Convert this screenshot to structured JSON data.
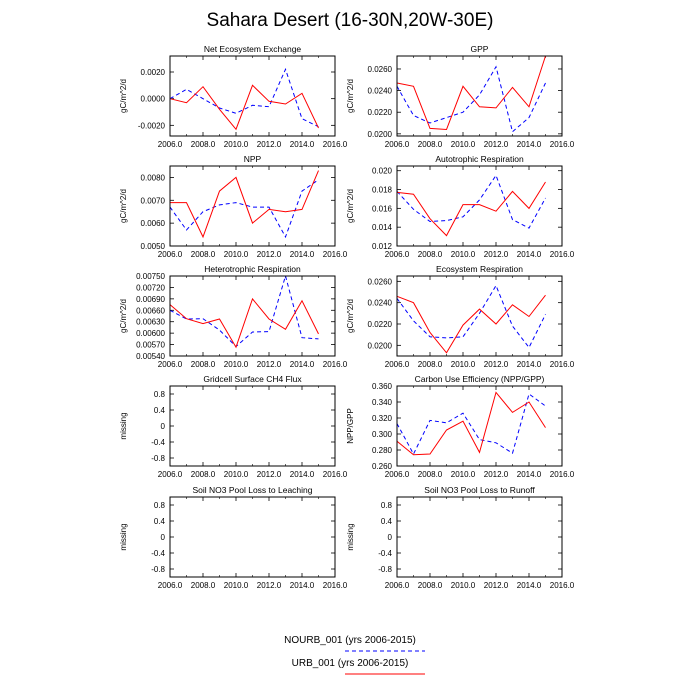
{
  "title": "Sahara Desert (16-30N,20W-30E)",
  "legend": {
    "items": [
      {
        "label": "NOURB_001 (yrs 2006-2015)",
        "color": "#0000ff",
        "dash": true
      },
      {
        "label": "URB_001 (yrs 2006-2015)",
        "color": "#ff0000",
        "dash": false
      }
    ]
  },
  "chart_data": [
    {
      "type": "line",
      "title": "Net Ecosystem Exchange",
      "ylabel": "gC/m^2/d",
      "x": [
        2006,
        2007,
        2008,
        2009,
        2010,
        2011,
        2012,
        2013,
        2014,
        2015
      ],
      "xlim": [
        2006,
        2016
      ],
      "xticks": [
        "2006.0",
        "2008.0",
        "2010.0",
        "2012.0",
        "2014.0",
        "2016.0"
      ],
      "ylim": [
        -0.0028,
        0.0032
      ],
      "yticks": [
        {
          "v": -0.002,
          "t": "-0.0020"
        },
        {
          "v": 0.0,
          "t": "0.0000"
        },
        {
          "v": 0.002,
          "t": "0.0020"
        }
      ],
      "series": [
        {
          "name": "NOURB_001",
          "color": "#0000ff",
          "dash": true,
          "values": [
            0.0,
            0.0007,
            0.0,
            -0.0007,
            -0.0011,
            -0.0005,
            -0.0006,
            0.0022,
            -0.0015,
            -0.0021
          ]
        },
        {
          "name": "URB_001",
          "color": "#ff0000",
          "dash": false,
          "values": [
            0.0,
            -0.0003,
            0.0009,
            -0.0008,
            -0.0023,
            0.001,
            -0.0002,
            -0.0004,
            0.0004,
            -0.0022
          ]
        }
      ]
    },
    {
      "type": "line",
      "title": "GPP",
      "ylabel": "gC/m^2/d",
      "x": [
        2006,
        2007,
        2008,
        2009,
        2010,
        2011,
        2012,
        2013,
        2014,
        2015
      ],
      "xlim": [
        2006,
        2016
      ],
      "xticks": [
        "2006.0",
        "2008.0",
        "2010.0",
        "2012.0",
        "2014.0",
        "2016.0"
      ],
      "ylim": [
        0.0198,
        0.0272
      ],
      "yticks": [
        {
          "v": 0.02,
          "t": "0.0200"
        },
        {
          "v": 0.022,
          "t": "0.0220"
        },
        {
          "v": 0.024,
          "t": "0.0240"
        },
        {
          "v": 0.026,
          "t": "0.0260"
        }
      ],
      "series": [
        {
          "name": "NOURB_001",
          "color": "#0000ff",
          "dash": true,
          "values": [
            0.0244,
            0.0217,
            0.021,
            0.0215,
            0.022,
            0.0236,
            0.0262,
            0.0202,
            0.0215,
            0.0247
          ]
        },
        {
          "name": "URB_001",
          "color": "#ff0000",
          "dash": false,
          "values": [
            0.0247,
            0.0244,
            0.0205,
            0.0204,
            0.0244,
            0.0225,
            0.0224,
            0.0243,
            0.0225,
            0.0272
          ]
        }
      ]
    },
    {
      "type": "line",
      "title": "NPP",
      "ylabel": "gC/m^2/d",
      "x": [
        2006,
        2007,
        2008,
        2009,
        2010,
        2011,
        2012,
        2013,
        2014,
        2015
      ],
      "xlim": [
        2006,
        2016
      ],
      "xticks": [
        "2006.0",
        "2008.0",
        "2010.0",
        "2012.0",
        "2014.0",
        "2016.0"
      ],
      "ylim": [
        0.005,
        0.0085
      ],
      "yticks": [
        {
          "v": 0.005,
          "t": "0.0050"
        },
        {
          "v": 0.006,
          "t": "0.0060"
        },
        {
          "v": 0.007,
          "t": "0.0070"
        },
        {
          "v": 0.008,
          "t": "0.0080"
        }
      ],
      "series": [
        {
          "name": "NOURB_001",
          "color": "#0000ff",
          "dash": true,
          "values": [
            0.0067,
            0.0057,
            0.0065,
            0.0068,
            0.0069,
            0.0067,
            0.0067,
            0.0054,
            0.0074,
            0.0079
          ]
        },
        {
          "name": "URB_001",
          "color": "#ff0000",
          "dash": false,
          "values": [
            0.0069,
            0.0069,
            0.0054,
            0.0074,
            0.008,
            0.006,
            0.0066,
            0.0065,
            0.0066,
            0.0083
          ]
        }
      ]
    },
    {
      "type": "line",
      "title": "Autotrophic Respiration",
      "ylabel": "gC/m^2/d",
      "x": [
        2006,
        2007,
        2008,
        2009,
        2010,
        2011,
        2012,
        2013,
        2014,
        2015
      ],
      "xlim": [
        2006,
        2016
      ],
      "xticks": [
        "2006.0",
        "2008.0",
        "2010.0",
        "2012.0",
        "2014.0",
        "2016.0"
      ],
      "ylim": [
        0.012,
        0.0205
      ],
      "yticks": [
        {
          "v": 0.012,
          "t": "0.012"
        },
        {
          "v": 0.014,
          "t": "0.014"
        },
        {
          "v": 0.016,
          "t": "0.016"
        },
        {
          "v": 0.018,
          "t": "0.018"
        },
        {
          "v": 0.02,
          "t": "0.020"
        }
      ],
      "series": [
        {
          "name": "NOURB_001",
          "color": "#0000ff",
          "dash": true,
          "values": [
            0.0178,
            0.0159,
            0.0146,
            0.0147,
            0.0151,
            0.0169,
            0.0195,
            0.0148,
            0.0139,
            0.0171
          ]
        },
        {
          "name": "URB_001",
          "color": "#ff0000",
          "dash": false,
          "values": [
            0.0177,
            0.0175,
            0.0149,
            0.0131,
            0.0164,
            0.0164,
            0.0157,
            0.0178,
            0.016,
            0.0188
          ]
        }
      ]
    },
    {
      "type": "line",
      "title": "Heterotrophic Respiration",
      "ylabel": "gC/m^2/d",
      "x": [
        2006,
        2007,
        2008,
        2009,
        2010,
        2011,
        2012,
        2013,
        2014,
        2015
      ],
      "xlim": [
        2006,
        2016
      ],
      "xticks": [
        "2006.0",
        "2008.0",
        "2010.0",
        "2012.0",
        "2014.0",
        "2016.0"
      ],
      "ylim": [
        0.0054,
        0.0075
      ],
      "yticks": [
        {
          "v": 0.0054,
          "t": "0.00540"
        },
        {
          "v": 0.0057,
          "t": "0.00570"
        },
        {
          "v": 0.006,
          "t": "0.00600"
        },
        {
          "v": 0.0063,
          "t": "0.00630"
        },
        {
          "v": 0.0066,
          "t": "0.00660"
        },
        {
          "v": 0.0069,
          "t": "0.00690"
        },
        {
          "v": 0.0072,
          "t": "0.00720"
        },
        {
          "v": 0.0075,
          "t": "0.00750"
        }
      ],
      "series": [
        {
          "name": "NOURB_001",
          "color": "#0000ff",
          "dash": true,
          "values": [
            0.0066,
            0.00637,
            0.00638,
            0.00608,
            0.00565,
            0.00603,
            0.00604,
            0.0075,
            0.00588,
            0.00585
          ]
        },
        {
          "name": "URB_001",
          "color": "#ff0000",
          "dash": false,
          "values": [
            0.00675,
            0.00638,
            0.00625,
            0.00637,
            0.00563,
            0.0069,
            0.00637,
            0.0061,
            0.00685,
            0.00598
          ]
        }
      ]
    },
    {
      "type": "line",
      "title": "Ecosystem Respiration",
      "ylabel": "gC/m^2/d",
      "x": [
        2006,
        2007,
        2008,
        2009,
        2010,
        2011,
        2012,
        2013,
        2014,
        2015
      ],
      "xlim": [
        2006,
        2016
      ],
      "xticks": [
        "2006.0",
        "2008.0",
        "2010.0",
        "2012.0",
        "2014.0",
        "2016.0"
      ],
      "ylim": [
        0.019,
        0.0265
      ],
      "yticks": [
        {
          "v": 0.02,
          "t": "0.0200"
        },
        {
          "v": 0.022,
          "t": "0.0220"
        },
        {
          "v": 0.024,
          "t": "0.0240"
        },
        {
          "v": 0.026,
          "t": "0.0260"
        }
      ],
      "series": [
        {
          "name": "NOURB_001",
          "color": "#0000ff",
          "dash": true,
          "values": [
            0.0244,
            0.0223,
            0.0208,
            0.0207,
            0.0208,
            0.023,
            0.0256,
            0.0218,
            0.0198,
            0.0229
          ]
        },
        {
          "name": "URB_001",
          "color": "#ff0000",
          "dash": false,
          "values": [
            0.0246,
            0.024,
            0.0212,
            0.0193,
            0.0219,
            0.0234,
            0.022,
            0.0238,
            0.0227,
            0.0247
          ]
        }
      ]
    },
    {
      "type": "line",
      "title": "Gridcell Surface CH4 Flux",
      "ylabel": "missing",
      "x": [],
      "xlim": [
        2006,
        2016
      ],
      "xticks": [
        "2006.0",
        "2008.0",
        "2010.0",
        "2012.0",
        "2014.0",
        "2016.0"
      ],
      "ylim": [
        -1.0,
        1.0
      ],
      "yticks": [
        {
          "v": -0.8,
          "t": "-0.8"
        },
        {
          "v": -0.4,
          "t": "-0.4"
        },
        {
          "v": 0.0,
          "t": "0"
        },
        {
          "v": 0.4,
          "t": "0.4"
        },
        {
          "v": 0.8,
          "t": "0.8"
        }
      ],
      "series": []
    },
    {
      "type": "line",
      "title": "Carbon Use Efficiency (NPP/GPP)",
      "ylabel": "NPP/GPP",
      "x": [
        2006,
        2007,
        2008,
        2009,
        2010,
        2011,
        2012,
        2013,
        2014,
        2015
      ],
      "xlim": [
        2006,
        2016
      ],
      "xticks": [
        "2006.0",
        "2008.0",
        "2010.0",
        "2012.0",
        "2014.0",
        "2016.0"
      ],
      "ylim": [
        0.26,
        0.36
      ],
      "yticks": [
        {
          "v": 0.26,
          "t": "0.260"
        },
        {
          "v": 0.28,
          "t": "0.280"
        },
        {
          "v": 0.3,
          "t": "0.300"
        },
        {
          "v": 0.32,
          "t": "0.320"
        },
        {
          "v": 0.34,
          "t": "0.340"
        },
        {
          "v": 0.36,
          "t": "0.360"
        }
      ],
      "series": [
        {
          "name": "NOURB_001",
          "color": "#0000ff",
          "dash": true,
          "values": [
            0.313,
            0.275,
            0.317,
            0.314,
            0.326,
            0.293,
            0.289,
            0.276,
            0.35,
            0.335
          ]
        },
        {
          "name": "URB_001",
          "color": "#ff0000",
          "dash": false,
          "values": [
            0.291,
            0.274,
            0.275,
            0.305,
            0.316,
            0.277,
            0.352,
            0.327,
            0.34,
            0.308
          ]
        }
      ]
    },
    {
      "type": "line",
      "title": "Soil NO3 Pool Loss to Leaching",
      "ylabel": "missing",
      "x": [],
      "xlim": [
        2006,
        2016
      ],
      "xticks": [
        "2006.0",
        "2008.0",
        "2010.0",
        "2012.0",
        "2014.0",
        "2016.0"
      ],
      "ylim": [
        -1.0,
        1.0
      ],
      "yticks": [
        {
          "v": -0.8,
          "t": "-0.8"
        },
        {
          "v": -0.4,
          "t": "-0.4"
        },
        {
          "v": 0.0,
          "t": "0"
        },
        {
          "v": 0.4,
          "t": "0.4"
        },
        {
          "v": 0.8,
          "t": "0.8"
        }
      ],
      "series": []
    },
    {
      "type": "line",
      "title": "Soil NO3 Pool Loss to Runoff",
      "ylabel": "missing",
      "x": [],
      "xlim": [
        2006,
        2016
      ],
      "xticks": [
        "2006.0",
        "2008.0",
        "2010.0",
        "2012.0",
        "2014.0",
        "2016.0"
      ],
      "ylim": [
        -1.0,
        1.0
      ],
      "yticks": [
        {
          "v": -0.8,
          "t": "-0.8"
        },
        {
          "v": -0.4,
          "t": "-0.4"
        },
        {
          "v": 0.0,
          "t": "0"
        },
        {
          "v": 0.4,
          "t": "0.4"
        },
        {
          "v": 0.8,
          "t": "0.8"
        }
      ],
      "series": []
    }
  ]
}
